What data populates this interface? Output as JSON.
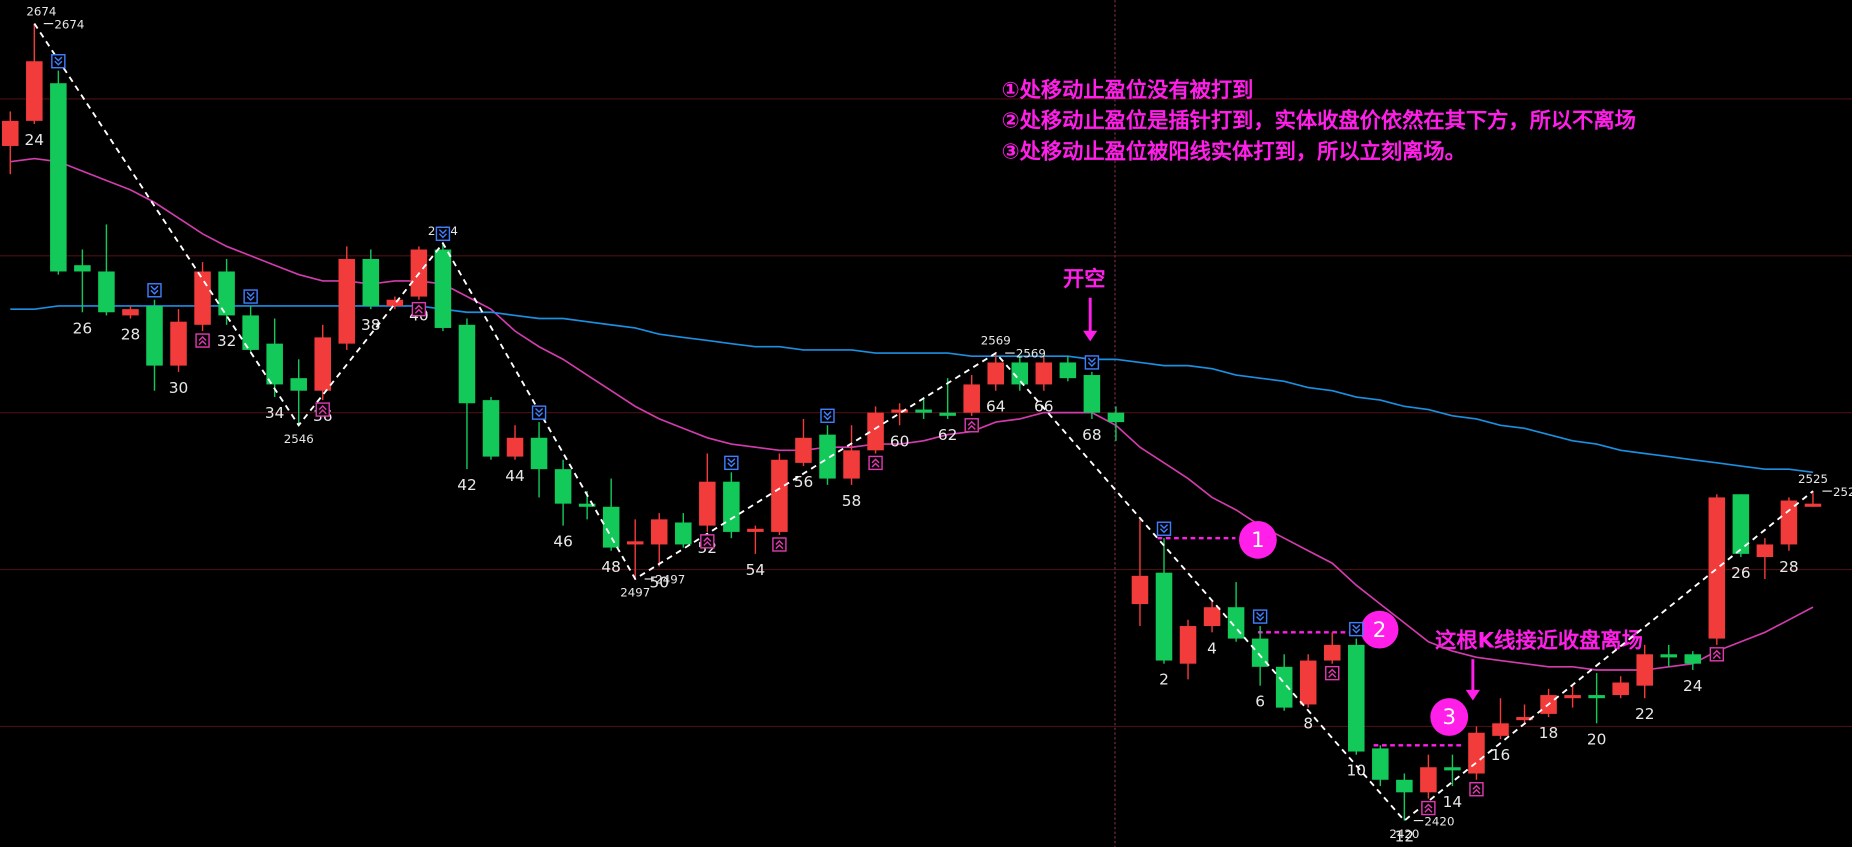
{
  "chart_data": {
    "type": "candlestick",
    "categories": [
      null,
      "24",
      null,
      "26",
      null,
      "28",
      null,
      "30",
      null,
      "32",
      null,
      "34",
      null,
      "36",
      null,
      "38",
      null,
      "40",
      null,
      "42",
      null,
      "44",
      null,
      "46",
      null,
      "48",
      null,
      "50",
      null,
      "52",
      null,
      "54",
      null,
      "56",
      null,
      "58",
      null,
      "60",
      null,
      "62",
      null,
      "64",
      null,
      "66",
      null,
      "68",
      null,
      null,
      "2",
      null,
      "4",
      null,
      "6",
      null,
      "8",
      null,
      "10",
      null,
      "12",
      null,
      "14",
      null,
      "16",
      null,
      "18",
      null,
      "20",
      null,
      "22",
      null,
      "24",
      null,
      "26",
      null,
      "28",
      null
    ],
    "open": [
      2635,
      2643,
      2655,
      2597,
      2595,
      2581,
      2584,
      2565,
      2578,
      2595,
      2581,
      2572,
      2561,
      2557,
      2572,
      2599,
      2584,
      2587,
      2602,
      2578,
      2554,
      2536,
      2542,
      2532,
      2521,
      2520,
      2508,
      2508,
      2515,
      2514,
      2528,
      2512,
      2512,
      2534,
      2543,
      2529,
      2538,
      2550,
      2551,
      2550,
      2550,
      2559,
      2566,
      2559,
      2566,
      2562,
      2550,
      2489,
      2499,
      2470,
      2482,
      2488,
      2478,
      2469,
      2457,
      2471,
      2476,
      2443,
      2433,
      2429,
      2437,
      2435,
      2447,
      2452,
      2454,
      2459,
      2460,
      2460,
      2463,
      2473,
      2473,
      2478,
      2524,
      2504,
      2508,
      2520
    ],
    "high": [
      2646,
      2674,
      2659,
      2602,
      2610,
      2584,
      2586,
      2583,
      2598,
      2599,
      2584,
      2580,
      2567,
      2578,
      2603,
      2602,
      2587,
      2603,
      2604,
      2580,
      2555,
      2546,
      2547,
      2535,
      2525,
      2529,
      2516,
      2518,
      2518,
      2537,
      2531,
      2514,
      2537,
      2548,
      2546,
      2546,
      2552,
      2553,
      2555,
      2561,
      2562,
      2569,
      2568,
      2568,
      2568,
      2563,
      2552,
      2516,
      2510,
      2484,
      2490,
      2496,
      2482,
      2473,
      2473,
      2480,
      2478,
      2444,
      2435,
      2441,
      2441,
      2450,
      2459,
      2457,
      2462,
      2463,
      2467,
      2466,
      2476,
      2476,
      2474,
      2524,
      2524,
      2510,
      2523,
      2525
    ],
    "low": [
      2626,
      2642,
      2594,
      2582,
      2581,
      2580,
      2557,
      2563,
      2576,
      2578,
      2569,
      2555,
      2546,
      2554,
      2570,
      2583,
      2583,
      2586,
      2576,
      2532,
      2535,
      2535,
      2523,
      2514,
      2516,
      2506,
      2497,
      2501,
      2507,
      2512,
      2510,
      2505,
      2511,
      2533,
      2527,
      2527,
      2537,
      2546,
      2548,
      2548,
      2549,
      2557,
      2557,
      2557,
      2560,
      2548,
      2541,
      2482,
      2470,
      2465,
      2480,
      2477,
      2463,
      2455,
      2456,
      2470,
      2441,
      2431,
      2420,
      2427,
      2431,
      2433,
      2446,
      2451,
      2453,
      2456,
      2451,
      2459,
      2459,
      2469,
      2468,
      2476,
      2504,
      2497,
      2506,
      2520
    ],
    "close": [
      2643,
      2662,
      2595,
      2595,
      2582,
      2583,
      2565,
      2579,
      2595,
      2581,
      2570,
      2559,
      2557,
      2574,
      2599,
      2584,
      2586,
      2602,
      2577,
      2553,
      2536,
      2542,
      2532,
      2521,
      2520,
      2507,
      2509,
      2516,
      2508,
      2528,
      2512,
      2513,
      2535,
      2542,
      2529,
      2538,
      2550,
      2551,
      2550,
      2549,
      2559,
      2566,
      2559,
      2566,
      2561,
      2550,
      2547,
      2498,
      2471,
      2482,
      2488,
      2478,
      2469,
      2456,
      2471,
      2476,
      2442,
      2433,
      2429,
      2437,
      2436,
      2448,
      2451,
      2453,
      2460,
      2460,
      2459,
      2464,
      2473,
      2472,
      2470,
      2523,
      2505,
      2508,
      2522,
      2521
    ],
    "up_color": "#f23b3b",
    "down_color": "#13c95a",
    "lines": [
      {
        "color": "#d23cad",
        "values": [
          2630,
          2631,
          2630,
          2627,
          2624,
          2621,
          2617,
          2612,
          2607,
          2603,
          2600,
          2597,
          2594,
          2592,
          2592,
          2591,
          2592,
          2592,
          2591,
          2587,
          2583,
          2576,
          2571,
          2567,
          2562,
          2557,
          2552,
          2548,
          2545,
          2542,
          2540,
          2539,
          2538,
          2538,
          2539,
          2539,
          2540,
          2540,
          2541,
          2543,
          2544,
          2547,
          2548,
          2550,
          2550,
          2550,
          2546,
          2539,
          2534,
          2529,
          2523,
          2519,
          2514,
          2510,
          2506,
          2502,
          2495,
          2489,
          2483,
          2477,
          2474,
          2472,
          2471,
          2470,
          2469,
          2469,
          2468,
          2468,
          2468,
          2469,
          2470,
          2474,
          2477,
          2480,
          2484,
          2488
        ]
      },
      {
        "color": "#1b8fe0",
        "values": [
          2583,
          2583,
          2584,
          2584,
          2584,
          2584,
          2584,
          2584,
          2584,
          2584,
          2584,
          2584,
          2584,
          2584,
          2584,
          2584,
          2584,
          2584,
          2583,
          2582,
          2582,
          2581,
          2580,
          2580,
          2579,
          2578,
          2577,
          2575,
          2574,
          2573,
          2572,
          2571,
          2571,
          2570,
          2570,
          2570,
          2569,
          2569,
          2569,
          2569,
          2568,
          2568,
          2568,
          2568,
          2568,
          2567,
          2567,
          2566,
          2565,
          2565,
          2564,
          2562,
          2561,
          2560,
          2558,
          2557,
          2555,
          2554,
          2552,
          2551,
          2549,
          2548,
          2546,
          2545,
          2543,
          2541,
          2540,
          2538,
          2537,
          2536,
          2535,
          2534,
          2533,
          2532,
          2532,
          2531
        ]
      }
    ],
    "extremes": [
      {
        "index": 1,
        "value": 2674
      },
      {
        "index": 12,
        "value": 2546
      },
      {
        "index": 18,
        "value": 2604
      },
      {
        "index": 26,
        "value": 2497
      },
      {
        "index": 41,
        "value": 2569
      },
      {
        "index": 58,
        "value": 2420
      },
      {
        "index": 75,
        "value": 2525
      }
    ],
    "sell_signals": [
      2,
      6,
      10,
      18,
      22,
      30,
      34,
      45,
      48,
      52,
      56
    ],
    "buy_signals": [
      8,
      13,
      17,
      29,
      32,
      36,
      40,
      55,
      59,
      61,
      71
    ],
    "stops": [
      {
        "label": "1",
        "value": 2510
      },
      {
        "label": "2",
        "value": 2480
      },
      {
        "label": "3",
        "value": 2444
      }
    ],
    "notes": [
      "①处移动止盈位没有被打到",
      "②处移动止盈位是插针打到，实体收盘价依然在其下方，所以不离场",
      "③处移动止盈位被阳线实体打到，所以立刻离场。"
    ],
    "entry_label": "开空",
    "exit_label": "这根K线接近收盘离场",
    "ylim": [
      2411.6,
      2681.5
    ],
    "yticks": [
      2450,
      2500,
      2550,
      2600,
      2650
    ],
    "grid": true
  }
}
